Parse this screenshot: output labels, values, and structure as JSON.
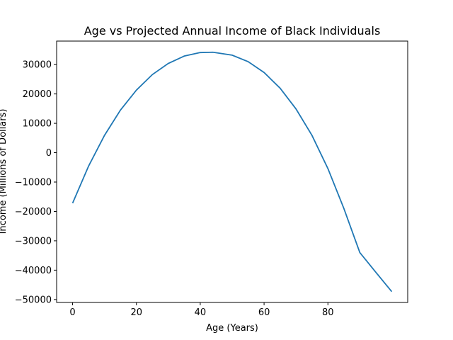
{
  "chart_data": {
    "type": "line",
    "title": "Age vs Projected Annual Income of Black Individuals",
    "xlabel": "Age (Years)",
    "ylabel": "Income (Millions of Dollars)",
    "xlim": [
      -5,
      105
    ],
    "ylim": [
      -51000,
      38000
    ],
    "x_ticks": [
      0,
      20,
      40,
      60,
      80
    ],
    "x_tick_labels": [
      "0",
      "20",
      "40",
      "60",
      "80"
    ],
    "y_ticks": [
      -50000,
      -40000,
      -30000,
      -20000,
      -10000,
      0,
      10000,
      20000,
      30000
    ],
    "y_tick_labels": [
      "−50000",
      "−40000",
      "−30000",
      "−20000",
      "−10000",
      "0",
      "10000",
      "20000",
      "30000"
    ],
    "grid": false,
    "series": [
      {
        "color": "#1f77b4",
        "x": [
          0,
          5,
          10,
          15,
          20,
          25,
          30,
          35,
          40,
          44,
          50,
          55,
          60,
          65,
          70,
          75,
          80,
          85,
          90,
          95,
          100
        ],
        "y": [
          -17200,
          -4600,
          5900,
          14500,
          21300,
          26600,
          30400,
          32900,
          34100,
          34200,
          33200,
          31000,
          27300,
          22000,
          14900,
          5900,
          -5400,
          -19000,
          -34000,
          -40700,
          -47300
        ]
      }
    ]
  }
}
